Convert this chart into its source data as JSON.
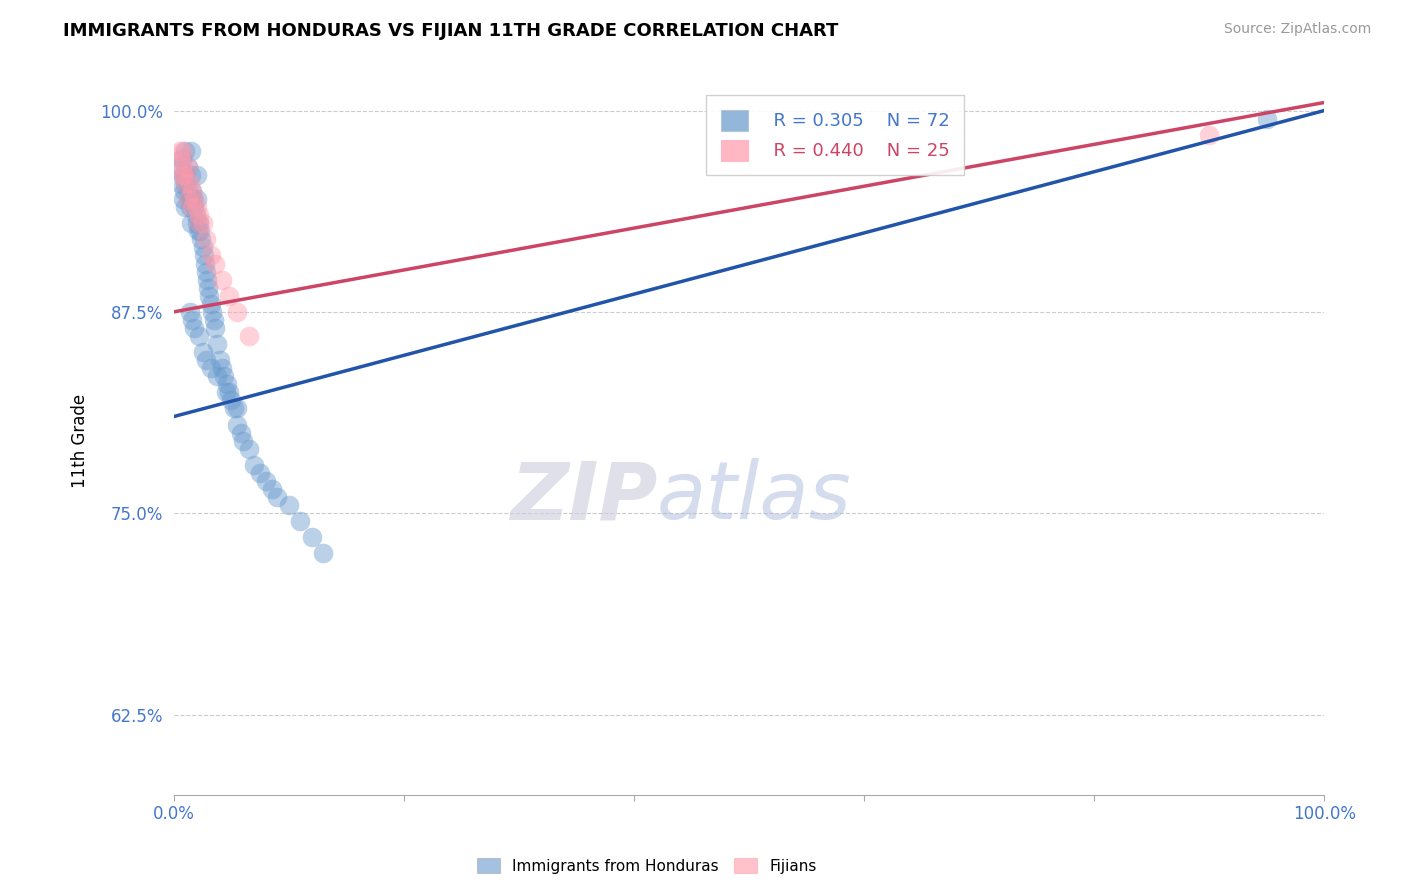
{
  "title": "IMMIGRANTS FROM HONDURAS VS FIJIAN 11TH GRADE CORRELATION CHART",
  "source_text": "Source: ZipAtlas.com",
  "ylabel": "11th Grade",
  "xlim": [
    0.0,
    1.0
  ],
  "ylim": [
    0.575,
    1.015
  ],
  "yticks": [
    0.625,
    0.75,
    0.875,
    1.0
  ],
  "ytick_labels": [
    "62.5%",
    "75.0%",
    "87.5%",
    "100.0%"
  ],
  "xticks": [
    0.0,
    0.2,
    0.4,
    0.6,
    0.8,
    1.0
  ],
  "xtick_labels": [
    "0.0%",
    "",
    "",
    "",
    "",
    "100.0%"
  ],
  "legend_blue_r": "R = 0.305",
  "legend_blue_n": "N = 72",
  "legend_pink_r": "R = 0.440",
  "legend_pink_n": "N = 25",
  "legend_label_blue": "Immigrants from Honduras",
  "legend_label_pink": "Fijians",
  "blue_color": "#6699CC",
  "pink_color": "#FF99AA",
  "blue_line_color": "#2255AA",
  "pink_line_color": "#CC4466",
  "blue_scatter_x": [
    0.005,
    0.005,
    0.007,
    0.008,
    0.008,
    0.009,
    0.01,
    0.01,
    0.01,
    0.01,
    0.012,
    0.012,
    0.013,
    0.014,
    0.015,
    0.015,
    0.015,
    0.015,
    0.016,
    0.017,
    0.018,
    0.019,
    0.02,
    0.02,
    0.02,
    0.021,
    0.022,
    0.023,
    0.024,
    0.025,
    0.026,
    0.027,
    0.028,
    0.029,
    0.03,
    0.031,
    0.032,
    0.033,
    0.035,
    0.036,
    0.038,
    0.04,
    0.042,
    0.044,
    0.046,
    0.048,
    0.05,
    0.052,
    0.055,
    0.058,
    0.06,
    0.065,
    0.07,
    0.075,
    0.08,
    0.085,
    0.09,
    0.1,
    0.11,
    0.12,
    0.014,
    0.016,
    0.018,
    0.022,
    0.025,
    0.028,
    0.032,
    0.038,
    0.045,
    0.055,
    0.13,
    0.95
  ],
  "blue_scatter_y": [
    0.965,
    0.955,
    0.97,
    0.96,
    0.945,
    0.95,
    0.975,
    0.96,
    0.955,
    0.94,
    0.965,
    0.95,
    0.945,
    0.94,
    0.975,
    0.96,
    0.945,
    0.93,
    0.95,
    0.945,
    0.94,
    0.935,
    0.96,
    0.945,
    0.93,
    0.925,
    0.93,
    0.925,
    0.92,
    0.915,
    0.91,
    0.905,
    0.9,
    0.895,
    0.89,
    0.885,
    0.88,
    0.875,
    0.87,
    0.865,
    0.855,
    0.845,
    0.84,
    0.835,
    0.83,
    0.825,
    0.82,
    0.815,
    0.805,
    0.8,
    0.795,
    0.79,
    0.78,
    0.775,
    0.77,
    0.765,
    0.76,
    0.755,
    0.745,
    0.735,
    0.875,
    0.87,
    0.865,
    0.86,
    0.85,
    0.845,
    0.84,
    0.835,
    0.825,
    0.815,
    0.725,
    0.995
  ],
  "pink_scatter_x": [
    0.005,
    0.006,
    0.007,
    0.008,
    0.009,
    0.01,
    0.012,
    0.014,
    0.016,
    0.018,
    0.02,
    0.022,
    0.025,
    0.028,
    0.032,
    0.036,
    0.042,
    0.048,
    0.055,
    0.065,
    0.008,
    0.012,
    0.016,
    0.022,
    0.9
  ],
  "pink_scatter_y": [
    0.975,
    0.97,
    0.965,
    0.975,
    0.96,
    0.955,
    0.965,
    0.955,
    0.95,
    0.945,
    0.94,
    0.935,
    0.93,
    0.92,
    0.91,
    0.905,
    0.895,
    0.885,
    0.875,
    0.86,
    0.96,
    0.945,
    0.94,
    0.93,
    0.985
  ],
  "blue_trendline_x0": 0.0,
  "blue_trendline_y0": 0.81,
  "blue_trendline_x1": 1.0,
  "blue_trendline_y1": 1.0,
  "pink_trendline_x0": 0.0,
  "pink_trendline_y0": 0.875,
  "pink_trendline_x1": 1.0,
  "pink_trendline_y1": 1.005,
  "watermark_zip": "ZIP",
  "watermark_atlas": "atlas",
  "background_color": "#FFFFFF",
  "grid_color": "#CCCCCC"
}
